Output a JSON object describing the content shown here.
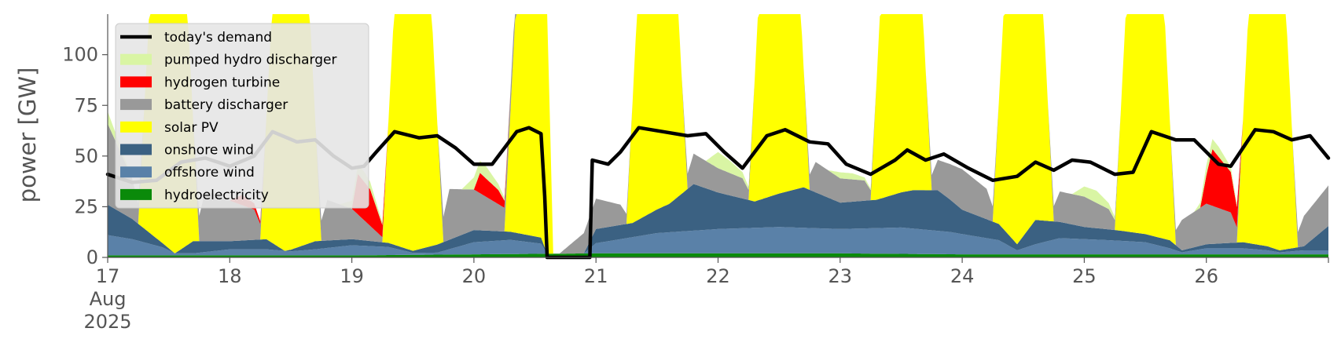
{
  "chart_data": {
    "type": "area",
    "title": "",
    "xlabel": "",
    "ylabel": "power [GW]",
    "ylim": [
      0,
      120
    ],
    "xlim_days": [
      17,
      27
    ],
    "y_ticks": [
      0,
      25,
      50,
      75,
      100
    ],
    "x_tick_labels": [
      {
        "day": 17,
        "label": "17"
      },
      {
        "day": 18,
        "label": "18"
      },
      {
        "day": 19,
        "label": "19"
      },
      {
        "day": 20,
        "label": "20"
      },
      {
        "day": 21,
        "label": "21"
      },
      {
        "day": 22,
        "label": "22"
      },
      {
        "day": 23,
        "label": "23"
      },
      {
        "day": 24,
        "label": "24"
      },
      {
        "day": 25,
        "label": "25"
      },
      {
        "day": 26,
        "label": "26"
      }
    ],
    "x_sub_labels": [
      "Aug",
      "2025"
    ],
    "grid": false,
    "legend_position": "upper-left",
    "legend": [
      {
        "label": "today's demand",
        "kind": "line",
        "color": "#000000"
      },
      {
        "label": "pumped hydro discharger",
        "kind": "patch",
        "color": "#d9f5a4"
      },
      {
        "label": "hydrogen turbine",
        "kind": "patch",
        "color": "#ff0000"
      },
      {
        "label": "battery discharger",
        "kind": "patch",
        "color": "#999999"
      },
      {
        "label": "solar PV",
        "kind": "patch",
        "color": "#ffff00"
      },
      {
        "label": "onshore wind",
        "kind": "patch",
        "color": "#3b6182"
      },
      {
        "label": "offshore wind",
        "kind": "patch",
        "color": "#5a81a8"
      },
      {
        "label": "hydroelectricity",
        "kind": "patch",
        "color": "#0a8a0a"
      }
    ],
    "stack_order": [
      "hydroelectricity",
      "offshore wind",
      "onshore wind",
      "solar PV",
      "battery discharger",
      "hydrogen turbine",
      "pumped hydro discharger"
    ],
    "series": [
      {
        "name": "hydroelectricity",
        "color": "#0a8a0a",
        "x": [
          17,
          18,
          19,
          20,
          21,
          22,
          23,
          24,
          25,
          26,
          27
        ],
        "values": [
          1,
          1,
          1,
          1.5,
          2,
          2,
          2,
          1.5,
          1.5,
          1.5,
          1.5
        ]
      },
      {
        "name": "offshore wind",
        "color": "#5a81a8",
        "x": [
          17.0,
          17.2,
          17.45,
          17.55,
          17.7,
          18.0,
          18.3,
          18.5,
          18.7,
          19.0,
          19.3,
          19.5,
          19.7,
          20.0,
          20.3,
          20.55,
          20.6,
          20.9,
          21.0,
          21.5,
          22.0,
          22.5,
          23.0,
          23.5,
          23.9,
          24.3,
          24.45,
          24.6,
          24.8,
          25.2,
          25.5,
          25.7,
          25.8,
          26.0,
          26.3,
          26.5,
          26.6,
          26.8,
          27.0
        ],
        "values": [
          10,
          8,
          4,
          1,
          1,
          3,
          3,
          2,
          3,
          5,
          4,
          1,
          1,
          6,
          7,
          5,
          0,
          0,
          5,
          10,
          12,
          13,
          12,
          13,
          11,
          7,
          2,
          5,
          8,
          7,
          6,
          3,
          1,
          3,
          3,
          2,
          1,
          2,
          2
        ]
      },
      {
        "name": "onshore wind",
        "color": "#3b6182",
        "x": [
          17.0,
          17.2,
          17.45,
          17.55,
          17.7,
          18.0,
          18.3,
          18.45,
          18.7,
          19.0,
          19.3,
          19.5,
          19.7,
          20.0,
          20.3,
          20.55,
          20.6,
          20.9,
          21.0,
          21.3,
          21.6,
          21.8,
          22.0,
          22.3,
          22.7,
          23.0,
          23.3,
          23.6,
          23.8,
          24.0,
          24.3,
          24.45,
          24.6,
          24.8,
          25.0,
          25.3,
          25.5,
          25.7,
          25.8,
          26.0,
          26.3,
          26.5,
          26.6,
          26.8,
          27.0
        ],
        "values": [
          15,
          10,
          2,
          0,
          6,
          4,
          5,
          0,
          4,
          3,
          2,
          1,
          4,
          6,
          4,
          3,
          0,
          0,
          7,
          7,
          14,
          23,
          18,
          13,
          20,
          13,
          14,
          19,
          20,
          12,
          8,
          3,
          12,
          8,
          6,
          5,
          4,
          4,
          1,
          2,
          3,
          2,
          1,
          2,
          12
        ]
      },
      {
        "name": "solar PV",
        "color": "#ffff00",
        "x": [
          17.0,
          17.25,
          17.35,
          17.65,
          17.75,
          18.25,
          18.35,
          18.65,
          18.75,
          19.25,
          19.35,
          19.65,
          19.75,
          20.25,
          20.35,
          20.6,
          20.65,
          20.75,
          21.25,
          21.35,
          21.65,
          21.75,
          22.25,
          22.35,
          22.65,
          22.75,
          23.25,
          23.35,
          23.65,
          23.75,
          24.25,
          24.35,
          24.65,
          24.75,
          25.25,
          25.35,
          25.65,
          25.75,
          26.25,
          26.35,
          26.65,
          26.75,
          27.0
        ],
        "values": [
          0,
          0,
          120,
          120,
          0,
          0,
          120,
          120,
          0,
          0,
          120,
          120,
          0,
          0,
          120,
          120,
          0,
          0,
          0,
          120,
          120,
          0,
          0,
          120,
          120,
          0,
          0,
          120,
          120,
          0,
          0,
          120,
          120,
          0,
          0,
          120,
          120,
          0,
          0,
          120,
          120,
          0,
          0
        ]
      },
      {
        "name": "battery discharger",
        "color": "#999999",
        "x": [
          17.0,
          17.2,
          17.3,
          17.7,
          17.8,
          18.0,
          18.2,
          18.3,
          18.7,
          18.8,
          19.0,
          19.3,
          19.7,
          19.8,
          20.0,
          20.3,
          20.6,
          20.7,
          21.0,
          21.2,
          21.3,
          21.7,
          21.8,
          22.0,
          22.2,
          22.3,
          22.7,
          22.8,
          23.0,
          23.2,
          23.3,
          23.7,
          23.8,
          24.0,
          24.2,
          24.3,
          24.7,
          24.8,
          25.0,
          25.2,
          25.3,
          25.7,
          25.8,
          26.0,
          26.2,
          26.3,
          26.7,
          26.8,
          27.0
        ],
        "values": [
          40,
          20,
          0,
          0,
          25,
          20,
          15,
          0,
          0,
          20,
          15,
          0,
          0,
          25,
          20,
          10,
          0,
          0,
          15,
          10,
          0,
          0,
          15,
          12,
          10,
          0,
          0,
          15,
          12,
          10,
          0,
          0,
          15,
          20,
          15,
          0,
          0,
          15,
          15,
          10,
          0,
          0,
          15,
          20,
          15,
          0,
          0,
          15,
          20
        ]
      },
      {
        "name": "hydrogen turbine",
        "color": "#ff0000",
        "x": [
          17.0,
          18.0,
          18.1,
          18.2,
          18.3,
          19.0,
          19.05,
          19.15,
          19.3,
          20.0,
          20.05,
          20.2,
          20.3,
          21.0,
          25.95,
          26.05,
          26.2,
          26.3,
          27.0
        ],
        "values": [
          0,
          0,
          5,
          3,
          0,
          0,
          20,
          18,
          0,
          0,
          10,
          7,
          0,
          0,
          0,
          28,
          20,
          0,
          0
        ]
      },
      {
        "name": "pumped hydro discharger",
        "color": "#d9f5a4",
        "x": [
          17.0,
          17.1,
          17.2,
          18.9,
          19.0,
          19.1,
          19.3,
          19.9,
          20.0,
          20.1,
          20.3,
          21.9,
          22.0,
          22.1,
          22.3,
          22.9,
          23.0,
          23.1,
          23.3,
          24.9,
          25.0,
          25.1,
          25.3,
          25.9,
          26.0,
          26.1,
          26.3,
          27.0
        ],
        "values": [
          6,
          3,
          0,
          0,
          4,
          5,
          0,
          0,
          6,
          6,
          0,
          0,
          8,
          6,
          0,
          0,
          3,
          3,
          0,
          0,
          5,
          6,
          0,
          0,
          5,
          5,
          0,
          0
        ]
      }
    ],
    "demand": {
      "name": "today's demand",
      "color": "#000000",
      "x": [
        17.0,
        17.2,
        17.4,
        17.6,
        17.8,
        18.0,
        18.2,
        18.35,
        18.55,
        18.7,
        18.85,
        19.0,
        19.1,
        19.2,
        19.35,
        19.55,
        19.7,
        19.85,
        20.0,
        20.15,
        20.35,
        20.45,
        20.55,
        20.58,
        20.6,
        20.95,
        20.97,
        21.1,
        21.2,
        21.35,
        21.55,
        21.75,
        21.9,
        22.05,
        22.2,
        22.4,
        22.55,
        22.75,
        22.9,
        23.05,
        23.25,
        23.45,
        23.55,
        23.7,
        23.85,
        24.05,
        24.25,
        24.45,
        24.6,
        24.75,
        24.9,
        25.05,
        25.25,
        25.4,
        25.55,
        25.75,
        25.9,
        26.1,
        26.2,
        26.4,
        26.55,
        26.7,
        26.85,
        27.0
      ],
      "values": [
        41,
        37,
        38,
        47,
        49,
        45,
        50,
        62,
        57,
        58,
        50,
        44,
        45,
        52,
        62,
        59,
        60,
        54,
        46,
        46,
        62,
        64,
        61,
        30,
        0,
        0,
        48,
        46,
        52,
        64,
        62,
        60,
        61,
        52,
        44,
        60,
        63,
        57,
        56,
        46,
        41,
        48,
        53,
        48,
        51,
        44,
        38,
        40,
        47,
        43,
        48,
        47,
        41,
        42,
        62,
        58,
        58,
        46,
        45,
        63,
        62,
        58,
        60,
        49
      ]
    }
  }
}
